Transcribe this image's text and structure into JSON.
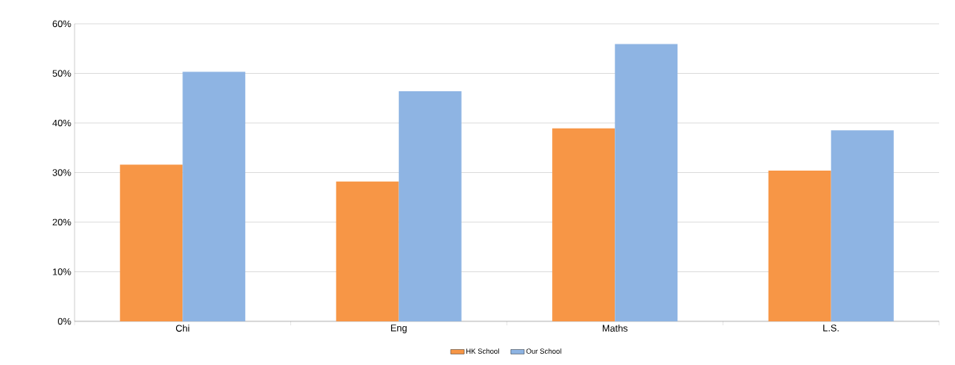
{
  "chart_data": {
    "type": "bar",
    "categories": [
      "Chi",
      "Eng",
      "Maths",
      "L.S."
    ],
    "series": [
      {
        "name": "HK School",
        "color": "#f79646",
        "values": [
          31.6,
          28.2,
          38.9,
          30.4
        ]
      },
      {
        "name": "Our School",
        "color": "#8eb4e3",
        "values": [
          50.3,
          46.4,
          55.9,
          38.5
        ]
      }
    ],
    "ylim": [
      0,
      60
    ],
    "yticks": [
      {
        "value": 0,
        "label": "0%"
      },
      {
        "value": 10,
        "label": "10%"
      },
      {
        "value": 20,
        "label": "20%"
      },
      {
        "value": 30,
        "label": "30%"
      },
      {
        "value": 40,
        "label": "40%"
      },
      {
        "value": 50,
        "label": "50%"
      },
      {
        "value": 60,
        "label": "60%"
      }
    ],
    "grid": "y",
    "legend": "bottom"
  }
}
